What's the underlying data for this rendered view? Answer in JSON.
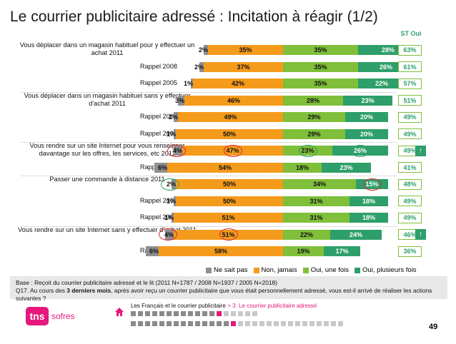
{
  "header": {
    "title": "Le courrier publicitaire adressé : Incitation à réagir (1/2)",
    "st_oui_label": "ST Oui"
  },
  "chart_data": {
    "type": "bar",
    "stacked": true,
    "orientation": "horizontal",
    "legend_position": "bottom",
    "series_names": [
      "Ne sait pas",
      "Non, jamais",
      "Oui, une fois",
      "Oui, plusieurs fois"
    ],
    "colors": [
      "#8f8f8f",
      "#f59b1c",
      "#7fbf3a",
      "#2e9f6a"
    ],
    "rows": [
      {
        "label": "Vous déplacer dans un magasin habituel pour y effectuer un achat 2011",
        "values": [
          2,
          35,
          35,
          28
        ],
        "st_oui": "63%",
        "arrow": false
      },
      {
        "label": "Rappel 2008",
        "values": [
          2,
          37,
          35,
          26
        ],
        "st_oui": "61%",
        "arrow": false
      },
      {
        "label": "Rappel 2005",
        "values": [
          1,
          42,
          35,
          22
        ],
        "st_oui": "57%",
        "arrow": false
      },
      {
        "label": "Vous déplacer dans un magasin habituel sans y effectuer d'achat 2011",
        "values": [
          3,
          46,
          28,
          23
        ],
        "st_oui": "51%",
        "arrow": false
      },
      {
        "label": "Rappel 2008",
        "values": [
          2,
          49,
          29,
          20
        ],
        "st_oui": "49%",
        "arrow": false
      },
      {
        "label": "Rappel 2005",
        "values": [
          1,
          50,
          29,
          20
        ],
        "st_oui": "49%",
        "arrow": false
      },
      {
        "label": "Vous rendre sur un site Internet pour vous renseigner davantage sur les offres, les services, etc 2011",
        "values": [
          4,
          47,
          23,
          26
        ],
        "st_oui": "49%",
        "arrow": true
      },
      {
        "label": "Rappel 2008",
        "values": [
          6,
          54,
          18,
          23
        ],
        "st_oui": "41%",
        "arrow": false
      },
      {
        "label": "Passer une commande à distance 2011",
        "values": [
          2,
          50,
          34,
          15
        ],
        "st_oui": "48%",
        "arrow": false
      },
      {
        "label": "Rappel 2008",
        "values": [
          1,
          50,
          31,
          18
        ],
        "st_oui": "49%",
        "arrow": false
      },
      {
        "label": "Rappel 2005",
        "values": [
          1,
          51,
          31,
          18
        ],
        "st_oui": "49%",
        "arrow": false
      },
      {
        "label": "Vous rendre sur un site Internet sans y effectuer d'achat 2011",
        "values": [
          4,
          51,
          22,
          24
        ],
        "st_oui": "46%",
        "arrow": true
      },
      {
        "label": "Rappel 2008",
        "values": [
          6,
          58,
          19,
          17
        ],
        "st_oui": "36%",
        "arrow": false
      }
    ],
    "highlights": [
      {
        "row": 6,
        "segment": 0,
        "color": "red"
      },
      {
        "row": 6,
        "segment": 1,
        "color": "red"
      },
      {
        "row": 6,
        "segment": 2,
        "color": "green"
      },
      {
        "row": 6,
        "segment": 3,
        "color": "green"
      },
      {
        "row": 8,
        "segment": 0,
        "color": "green"
      },
      {
        "row": 8,
        "segment": 3,
        "color": "red"
      },
      {
        "row": 11,
        "segment": 0,
        "color": "red"
      },
      {
        "row": 11,
        "segment": 1,
        "color": "red"
      }
    ]
  },
  "footer": {
    "base": "Base : Reçoit du courrier publicitaire adressé et le lit (2011 N=1787 / 2008 N=1937 / 2005 N=2018)",
    "q17_prefix": "Q17. Au cours des ",
    "q17_bold": "3 derniers mois",
    "q17_suffix": ", après avoir reçu un courrier publicitaire que vous était personnellement adressé, vous est-il arrivé de réaliser les actions suivantes ?"
  },
  "branding": {
    "logo_text": "tns",
    "logo_sub": "sofres"
  },
  "nav": {
    "section": "Les Français et le courrier publicitaire",
    "separator": " > ",
    "subsection": "3. Le courrier publicitaire adressé"
  },
  "page_number": "49",
  "arrow_glyph": "↑"
}
